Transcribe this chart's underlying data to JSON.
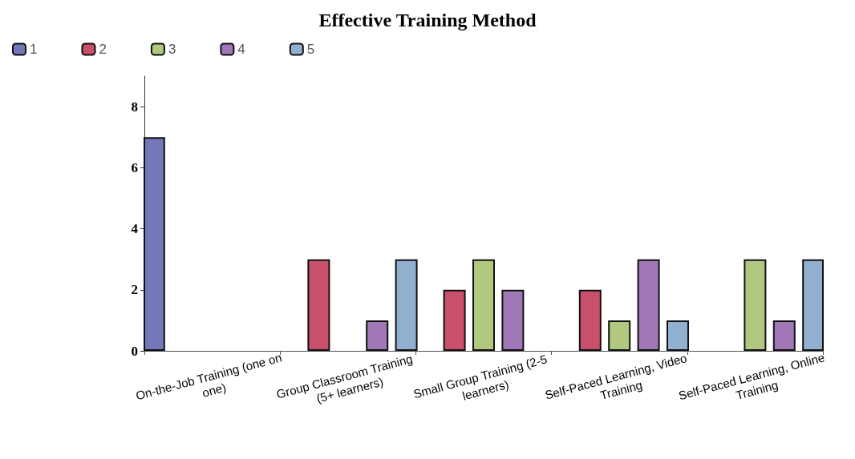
{
  "chart_data": {
    "type": "bar",
    "title": "Effective Training Method",
    "categories": [
      "On-the-Job Training (one on one)",
      "Group Classroom Training (5+ learners)",
      "Small Group Training (2-5 learners)",
      "Self-Paced Learning, Video Training",
      "Self-Paced Learning, Online Training"
    ],
    "series": [
      {
        "name": "1",
        "color": "#7378b8",
        "values": [
          7,
          0,
          0,
          0,
          0
        ]
      },
      {
        "name": "2",
        "color": "#c8506a",
        "values": [
          0,
          3,
          2,
          2,
          0
        ]
      },
      {
        "name": "3",
        "color": "#b0c880",
        "values": [
          0,
          0,
          3,
          1,
          3
        ]
      },
      {
        "name": "4",
        "color": "#a078b8",
        "values": [
          0,
          1,
          2,
          3,
          1
        ]
      },
      {
        "name": "5",
        "color": "#90b0d0",
        "values": [
          0,
          3,
          0,
          1,
          3
        ]
      }
    ],
    "ylim": [
      0,
      9
    ],
    "yticks": [
      0,
      2,
      4,
      6,
      8
    ],
    "grid": false,
    "legend": "top left"
  }
}
